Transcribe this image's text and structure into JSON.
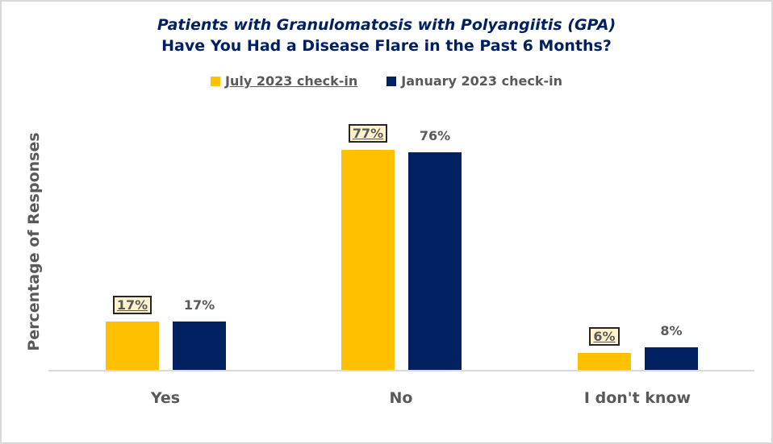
{
  "chart_data": {
    "type": "bar",
    "title": "Patients with Granulomatosis  with Polyangiitis (GPA)",
    "subtitle": "Have You Had a Disease Flare in the Past 6 Months?",
    "xlabel": "",
    "ylabel": "Percentage of Responses",
    "categories": [
      "Yes",
      "No",
      "I don't know"
    ],
    "series": [
      {
        "name": "July 2023 check-in",
        "color": "#ffc000",
        "values": [
          17,
          77,
          6
        ],
        "labels": [
          "17%",
          "77%",
          "6%"
        ]
      },
      {
        "name": "January 2023 check-in",
        "color": "#002060",
        "values": [
          17,
          76,
          8
        ],
        "labels": [
          "17%",
          "76%",
          "8%"
        ]
      }
    ],
    "ylim": [
      0,
      80
    ],
    "grid": false,
    "legend_position": "top"
  }
}
